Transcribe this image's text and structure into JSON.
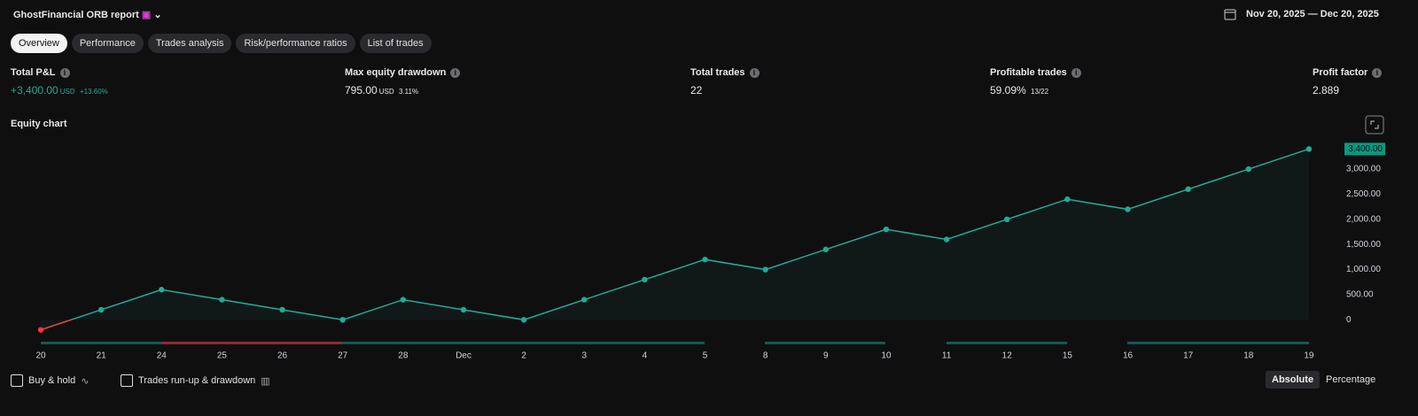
{
  "header": {
    "title": "GhostFinancial ORB report",
    "date_range": "Nov 20, 2025 — Dec 20, 2025"
  },
  "tabs": [
    "Overview",
    "Performance",
    "Trades analysis",
    "Risk/performance ratios",
    "List of trades"
  ],
  "metrics": [
    {
      "label": "Total P&L",
      "value": "+3,400.00",
      "unit": "USD",
      "extra": "+13.60%"
    },
    {
      "label": "Max equity drawdown",
      "value": "795.00",
      "unit": "USD",
      "extra": "3.11%"
    },
    {
      "label": "Total trades",
      "value": "22"
    },
    {
      "label": "Profitable trades",
      "value": "59.09%",
      "extra": "13/22"
    },
    {
      "label": "Profit factor",
      "value": "2.889"
    }
  ],
  "chart_data": {
    "type": "line",
    "title": "Equity chart",
    "categories": [
      "20",
      "21",
      "24",
      "25",
      "26",
      "27",
      "28",
      "Dec",
      "2",
      "3",
      "4",
      "5",
      "8",
      "9",
      "10",
      "11",
      "12",
      "15",
      "16",
      "17",
      "18",
      "19"
    ],
    "values": [
      -200,
      200,
      600,
      400,
      200,
      0,
      400,
      200,
      0,
      400,
      800,
      1200,
      1000,
      1400,
      1800,
      1600,
      2000,
      2400,
      2200,
      2600,
      3000,
      3400
    ],
    "value_labels": [
      null,
      null,
      null,
      null,
      null,
      null,
      null,
      null,
      null,
      null,
      null,
      null,
      null,
      null,
      null,
      null,
      null,
      null,
      null,
      null,
      null,
      "3,400.00"
    ],
    "color": "#22ab94",
    "negative_color": "#f23645",
    "ylim": [
      -400,
      3600
    ],
    "yticks": [
      0,
      {
        "value": 500,
        "label": "500.00"
      },
      {
        "value": 1000,
        "label": "1,000.00"
      },
      {
        "value": 1500,
        "label": "1,500.00"
      },
      {
        "value": 2000,
        "label": "2,000.00"
      },
      {
        "value": 2500,
        "label": "2,500.00"
      },
      {
        "value": 3000,
        "label": "3,000.00"
      }
    ],
    "grid": false
  },
  "controls": {
    "buy_hold": "Buy & hold",
    "runup": "Trades run-up & drawdown",
    "absolute": "Absolute",
    "percentage": "Percentage"
  }
}
